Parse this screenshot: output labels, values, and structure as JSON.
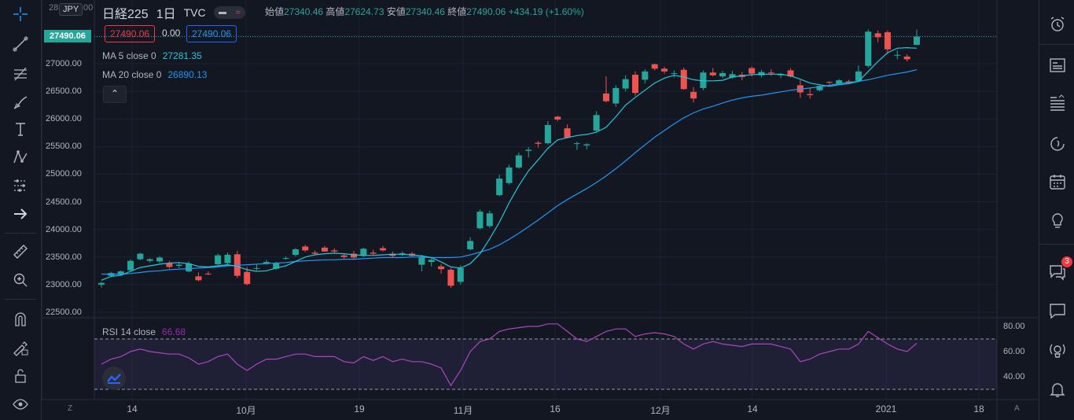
{
  "symbol": {
    "name": "日経225",
    "interval": "1日",
    "exchange": "TVC",
    "currency": "JPY",
    "currency_label_partial": "28",
    "currency_label_partial_right": "00"
  },
  "ohlc": {
    "open_label": "始値",
    "open": "27340.46",
    "high_label": "高値",
    "high": "27624.73",
    "low_label": "安値",
    "low": "27340.46",
    "close_label": "終値",
    "close": "27490.06",
    "change": "+434.19 (+1.60%)"
  },
  "trade": {
    "sell_price": "27490.06",
    "spread": "0.00",
    "buy_price": "27490.06"
  },
  "indicators": {
    "ma5": {
      "label": "MA 5 close 0",
      "value": "27281.35",
      "color": "#26c6da"
    },
    "ma20": {
      "label": "MA 20 close 0",
      "value": "26890.13",
      "color": "#2196f3"
    },
    "rsi": {
      "label": "RSI 14 close",
      "value": "66.68",
      "color": "#9c27b0"
    }
  },
  "price_axis": {
    "current": "27490.06",
    "ticks": [
      "27000.00",
      "26500.00",
      "26000.00",
      "25500.00",
      "25000.00",
      "24500.00",
      "24000.00",
      "23500.00",
      "23000.00",
      "22500.00"
    ]
  },
  "rsi_axis": {
    "ticks": [
      "80.00",
      "60.00",
      "40.00"
    ]
  },
  "time_axis": {
    "labels": [
      "14",
      "10月",
      "19",
      "11月",
      "16",
      "12月",
      "14",
      "2021",
      "18"
    ]
  },
  "corners": {
    "left": "Z",
    "right": "A"
  },
  "collapse_glyph": "⌃",
  "notifications": {
    "count": "3"
  },
  "colors": {
    "up": "#26a69a",
    "down": "#ef5350",
    "background": "#131722",
    "grid": "#1e2230"
  },
  "chart_data": {
    "type": "candlestick",
    "ylim": [
      22400,
      27800
    ],
    "rsi_ylim": [
      20,
      85
    ],
    "rsi_bands": [
      30,
      70
    ],
    "candles": [
      [
        23000,
        23050,
        22950,
        23030
      ],
      [
        23160,
        23230,
        23140,
        23210
      ],
      [
        23180,
        23260,
        23160,
        23240
      ],
      [
        23260,
        23460,
        23230,
        23430
      ],
      [
        23460,
        23580,
        23440,
        23560
      ],
      [
        23430,
        23480,
        23400,
        23460
      ],
      [
        23420,
        23520,
        23390,
        23490
      ],
      [
        23390,
        23430,
        23290,
        23320
      ],
      [
        23340,
        23390,
        23300,
        23360
      ],
      [
        23240,
        23420,
        23220,
        23380
      ],
      [
        23150,
        23220,
        23060,
        23080
      ],
      [
        23200,
        23240,
        23170,
        23190
      ],
      [
        23370,
        23560,
        23350,
        23530
      ],
      [
        23390,
        23580,
        23370,
        23540
      ],
      [
        23550,
        23610,
        23120,
        23160
      ],
      [
        23230,
        23320,
        22990,
        23010
      ],
      [
        23290,
        23360,
        23260,
        23300
      ],
      [
        23380,
        23450,
        23360,
        23410
      ],
      [
        23290,
        23410,
        23270,
        23390
      ],
      [
        23480,
        23510,
        23450,
        23480
      ],
      [
        23540,
        23660,
        23510,
        23640
      ],
      [
        23690,
        23720,
        23590,
        23620
      ],
      [
        23580,
        23620,
        23540,
        23560
      ],
      [
        23670,
        23700,
        23590,
        23600
      ],
      [
        23620,
        23660,
        23580,
        23600
      ],
      [
        23530,
        23570,
        23470,
        23500
      ],
      [
        23560,
        23610,
        23460,
        23490
      ],
      [
        23520,
        23670,
        23500,
        23650
      ],
      [
        23580,
        23630,
        23540,
        23560
      ],
      [
        23660,
        23700,
        23600,
        23620
      ],
      [
        23560,
        23600,
        23500,
        23520
      ],
      [
        23560,
        23600,
        23520,
        23570
      ],
      [
        23560,
        23590,
        23510,
        23520
      ],
      [
        23360,
        23540,
        23240,
        23490
      ],
      [
        23410,
        23490,
        23330,
        23450
      ],
      [
        23330,
        23370,
        23200,
        23280
      ],
      [
        23270,
        23300,
        22940,
        22980
      ],
      [
        23050,
        23350,
        23000,
        23300
      ],
      [
        23640,
        23860,
        23620,
        23790
      ],
      [
        24020,
        24360,
        24000,
        24320
      ],
      [
        24060,
        24340,
        24030,
        24290
      ],
      [
        24620,
        24990,
        24600,
        24920
      ],
      [
        24840,
        25170,
        24810,
        25120
      ],
      [
        25120,
        25390,
        25100,
        25340
      ],
      [
        25420,
        25490,
        25300,
        25440
      ],
      [
        25570,
        25600,
        25480,
        25550
      ],
      [
        25560,
        25960,
        25540,
        25890
      ],
      [
        26040,
        26060,
        25960,
        25990
      ],
      [
        25830,
        25900,
        25650,
        25660
      ],
      [
        25560,
        25590,
        25440,
        25560
      ],
      [
        25520,
        25560,
        25450,
        25540
      ],
      [
        25790,
        26140,
        25760,
        26070
      ],
      [
        26460,
        26770,
        26300,
        26320
      ],
      [
        26280,
        26610,
        26220,
        26560
      ],
      [
        26550,
        26790,
        26500,
        26720
      ],
      [
        26800,
        26860,
        26420,
        26470
      ],
      [
        26710,
        26900,
        26640,
        26860
      ],
      [
        26990,
        27000,
        26880,
        26910
      ],
      [
        26910,
        26950,
        26820,
        26860
      ],
      [
        26820,
        26880,
        26750,
        26830
      ],
      [
        26890,
        26930,
        26530,
        26540
      ],
      [
        26490,
        26580,
        26300,
        26370
      ],
      [
        26560,
        26880,
        26520,
        26840
      ],
      [
        26840,
        26920,
        26770,
        26790
      ],
      [
        26770,
        26870,
        26740,
        26830
      ],
      [
        26750,
        26870,
        26730,
        26810
      ],
      [
        26800,
        26850,
        26700,
        26760
      ],
      [
        26920,
        26950,
        26770,
        26820
      ],
      [
        26790,
        26890,
        26750,
        26850
      ],
      [
        26840,
        26900,
        26780,
        26830
      ],
      [
        26790,
        26830,
        26740,
        26810
      ],
      [
        26880,
        26920,
        26750,
        26770
      ],
      [
        26610,
        26700,
        26380,
        26480
      ],
      [
        26450,
        26560,
        26370,
        26430
      ],
      [
        26520,
        26620,
        26500,
        26600
      ],
      [
        26670,
        26680,
        26630,
        26660
      ],
      [
        26640,
        26720,
        26620,
        26700
      ],
      [
        26680,
        26710,
        26630,
        26650
      ],
      [
        26690,
        26970,
        26670,
        26860
      ],
      [
        26960,
        27620,
        26930,
        27580
      ],
      [
        27550,
        27600,
        27390,
        27480
      ],
      [
        27570,
        27600,
        27180,
        27260
      ],
      [
        27150,
        27240,
        27080,
        27160
      ],
      [
        27130,
        27170,
        27040,
        27080
      ],
      [
        27340,
        27620,
        27340,
        27490
      ]
    ],
    "ma5": [
      23080,
      23150,
      23170,
      23240,
      23310,
      23340,
      23370,
      23390,
      23400,
      23380,
      23330,
      23320,
      23340,
      23360,
      23330,
      23270,
      23240,
      23250,
      23300,
      23340,
      23420,
      23500,
      23540,
      23560,
      23570,
      23560,
      23540,
      23530,
      23530,
      23540,
      23550,
      23550,
      23540,
      23520,
      23490,
      23410,
      23320,
      23300,
      23380,
      23560,
      23830,
      24130,
      24480,
      24790,
      25060,
      25260,
      25470,
      25620,
      25660,
      25700,
      25720,
      25760,
      25850,
      26040,
      26250,
      26390,
      26520,
      26650,
      26740,
      26790,
      26760,
      26710,
      26690,
      26690,
      26700,
      26760,
      26780,
      26800,
      26810,
      26810,
      26810,
      26780,
      26720,
      26650,
      26620,
      26590,
      26620,
      26640,
      26680,
      26860,
      27040,
      27200,
      27280,
      27290,
      27281
    ],
    "ma20": [
      23190,
      23190,
      23190,
      23200,
      23220,
      23240,
      23250,
      23270,
      23280,
      23290,
      23300,
      23310,
      23320,
      23340,
      23350,
      23360,
      23370,
      23380,
      23390,
      23400,
      23420,
      23430,
      23440,
      23450,
      23450,
      23460,
      23460,
      23470,
      23480,
      23490,
      23490,
      23490,
      23500,
      23500,
      23490,
      23490,
      23490,
      23500,
      23540,
      23590,
      23640,
      23720,
      23820,
      23930,
      24050,
      24170,
      24300,
      24430,
      24540,
      24640,
      24740,
      24850,
      24970,
      25100,
      25240,
      25390,
      25530,
      25670,
      25790,
      25910,
      26020,
      26110,
      26180,
      26230,
      26290,
      26340,
      26380,
      26410,
      26430,
      26460,
      26490,
      26520,
      26540,
      26560,
      26580,
      26610,
      26640,
      26660,
      26680,
      26710,
      26750,
      26790,
      26820,
      26850,
      26890
    ],
    "rsi": [
      50,
      54,
      56,
      60,
      62,
      60,
      59,
      58,
      58,
      55,
      50,
      52,
      56,
      58,
      50,
      45,
      50,
      54,
      54,
      56,
      58,
      58,
      56,
      56,
      56,
      52,
      51,
      56,
      53,
      56,
      52,
      54,
      52,
      52,
      50,
      47,
      33,
      45,
      60,
      68,
      70,
      76,
      78,
      79,
      80,
      80,
      82,
      82,
      76,
      70,
      68,
      72,
      76,
      78,
      78,
      72,
      74,
      75,
      74,
      72,
      66,
      62,
      66,
      68,
      66,
      65,
      64,
      66,
      66,
      66,
      64,
      62,
      52,
      54,
      58,
      60,
      62,
      62,
      66,
      76,
      71,
      66,
      62,
      60,
      66.68
    ]
  }
}
